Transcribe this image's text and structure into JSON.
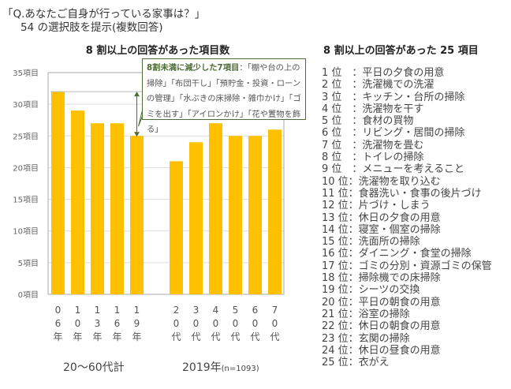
{
  "question": {
    "line1": "「Q.あなたご自身が行っている家事は？」",
    "line2": "54 の選択肢を提示(複数回答)"
  },
  "chart_data": {
    "type": "bar",
    "title": "8 割以上の回答があった項目数",
    "categories": [
      "06年",
      "10年",
      "13年",
      "16年",
      "19年",
      "20代",
      "30代",
      "40代",
      "50代",
      "60代",
      "70代"
    ],
    "category_labels": [
      [
        "0",
        "6",
        "年"
      ],
      [
        "1",
        "0",
        "年"
      ],
      [
        "1",
        "3",
        "年"
      ],
      [
        "1",
        "6",
        "年"
      ],
      [
        "1",
        "9",
        "年"
      ],
      [
        "2",
        "0",
        "代"
      ],
      [
        "3",
        "0",
        "代"
      ],
      [
        "4",
        "0",
        "代"
      ],
      [
        "5",
        "0",
        "代"
      ],
      [
        "6",
        "0",
        "代"
      ],
      [
        "7",
        "0",
        "代"
      ]
    ],
    "values": [
      32,
      29,
      27,
      27,
      25,
      21,
      24,
      27,
      25,
      25,
      26
    ],
    "groups": [
      {
        "label": "20～60代計",
        "count": 5
      },
      {
        "label": "2019年",
        "note": "(n=1093)",
        "count": 6
      }
    ],
    "ylim": [
      0,
      35
    ],
    "yticks": [
      "0項目",
      "5項目",
      "10項目",
      "15項目",
      "20項目",
      "25項目",
      "30項目",
      "35項目"
    ],
    "grid": true,
    "bar_color": "#ffc000",
    "annotation": {
      "heading": "8割未満に減少した7項目",
      "text": "：「棚や台の上の掃除」「布団干し」「預貯金・投資・ローンの管理」「水ぶきの床掃除・雑巾かけ」「ゴミを出す」「アイロンかけ」「花や置物を飾る」",
      "color": "#4f6b35"
    }
  },
  "ranking": {
    "title": "8 割以上の回答があった 25 項目",
    "items": [
      "1 位　：平日の夕食の用意",
      "2 位　：洗濯機での洗濯",
      "3 位　：キッチン・台所の掃除",
      "4 位　：洗濯物を干す",
      "5 位　：食材の買物",
      "6 位　：リビング・居間の掃除",
      "7 位　：洗濯物を畳む",
      "8 位　：トイレの掃除",
      "9 位　：メニューを考えること",
      "10 位：洗濯物を取り込む",
      "11 位：食器洗い・食事の後片づけ",
      "12 位：片づけ・しまう",
      "13 位：休日の夕食の用意",
      "14 位：寝室・個室の掃除",
      "15 位：洗面所の掃除",
      "16 位：ダイニング・食堂の掃除",
      "17 位：ゴミの分別・資源ゴミの保管",
      "18 位：掃除機での床掃除",
      "19 位：シーツの交換",
      "20 位：平日の朝食の用意",
      "21 位：浴室の掃除",
      "22 位：休日の朝食の用意",
      "23 位：玄関の掃除",
      "24 位：休日の昼食の用意",
      "25 位：衣がえ"
    ]
  }
}
